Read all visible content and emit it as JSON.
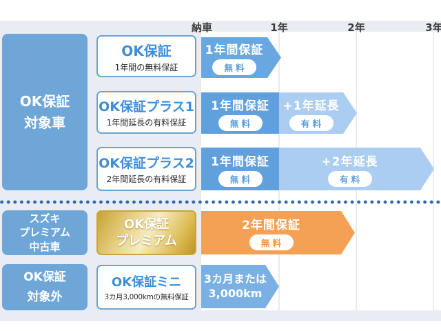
{
  "header": {
    "labels": [
      "納車",
      "1年",
      "2年",
      "3年"
    ]
  },
  "categories": [
    {
      "label": "OK保証\n対象車"
    },
    {
      "label": "スズキ\nプレミアム\n中古車"
    },
    {
      "label": "OK保証\n対象外"
    }
  ],
  "plans": [
    {
      "title": "OK保証",
      "subtitle": "1年間の無料保証"
    },
    {
      "title": "OK保証プラス1",
      "subtitle": "1年間延長の有料保証"
    },
    {
      "title": "OK保証プラス2",
      "subtitle": "2年間延長の有料保証"
    },
    {
      "title": "OK保証\nプレミアム"
    },
    {
      "title": "OK保証ミニ",
      "subtitle": "3カ月3,000kmの無料保証"
    }
  ],
  "bars": [
    {
      "period": "納車〜1年",
      "segments": [
        {
          "label": "1年間保証",
          "badge": "無 料"
        }
      ]
    },
    {
      "period": "納車〜2年",
      "segments": [
        {
          "label": "1年間保証",
          "badge": "無 料"
        },
        {
          "label": "+1年延長",
          "badge": "有 料"
        }
      ]
    },
    {
      "period": "納車〜3年",
      "segments": [
        {
          "label": "1年間保証",
          "badge": "無 料"
        },
        {
          "label": "+2年延長",
          "badge": "有 料"
        }
      ]
    },
    {
      "period": "納車〜2年",
      "segments": [
        {
          "label": "2年間保証",
          "badge": "無 料"
        }
      ]
    },
    {
      "period": "納車〜1年",
      "segments": [
        {
          "label": "3カ月または\n3,000km"
        }
      ]
    }
  ],
  "colors": {
    "category_blue": "#6ea6d8",
    "bar_blue": "#69a7e0",
    "bar_blue_dark": "#60a1dd",
    "bar_blue_light": "#abcdf1",
    "bar_blue_mini": "#7ab0e4",
    "bar_orange": "#f4a155",
    "plan_title_blue": "#3e8ed9",
    "gold_border": "#cba43a",
    "dotted_line": "#2a66b0",
    "background_band": "#e9edf3"
  }
}
